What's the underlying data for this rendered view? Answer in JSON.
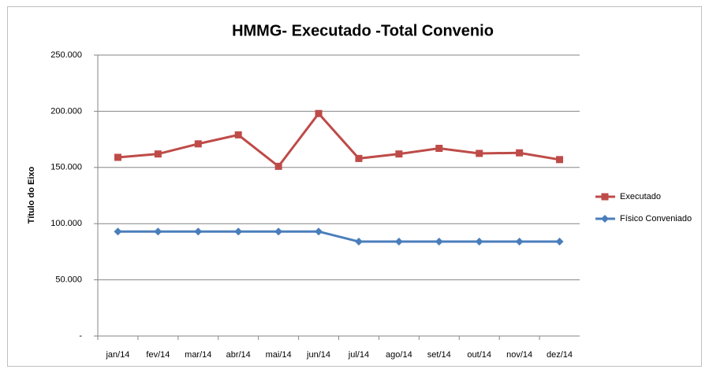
{
  "chart_data": {
    "type": "line",
    "title": "HMMG- Executado -Total  Convenio",
    "y_label": "Título do Eixo",
    "categories": [
      "jan/14",
      "fev/14",
      "mar/14",
      "abr/14",
      "mai/14",
      "jun/14",
      "jul/14",
      "ago/14",
      "set/14",
      "out/14",
      "nov/14",
      "dez/14"
    ],
    "series": [
      {
        "name": "Executado",
        "color": "#be4b48",
        "marker": "square",
        "values": [
          159000,
          162000,
          171000,
          179000,
          151000,
          198000,
          158000,
          162000,
          167000,
          162500,
          163000,
          157000
        ]
      },
      {
        "name": "Físico Conveniado",
        "color": "#4a7ebb",
        "marker": "diamond",
        "values": [
          93000,
          93000,
          93000,
          93000,
          93000,
          93000,
          84000,
          84000,
          84000,
          84000,
          84000,
          84000
        ]
      }
    ],
    "ylim": [
      0,
      250000
    ],
    "yticks": [
      {
        "value": 0,
        "label": "-"
      },
      {
        "value": 50000,
        "label": "50.000"
      },
      {
        "value": 100000,
        "label": "100.000"
      },
      {
        "value": 150000,
        "label": "150.000"
      },
      {
        "value": 200000,
        "label": "200.000"
      },
      {
        "value": 250000,
        "label": "250.000"
      }
    ],
    "grid": true,
    "legend": "right"
  }
}
